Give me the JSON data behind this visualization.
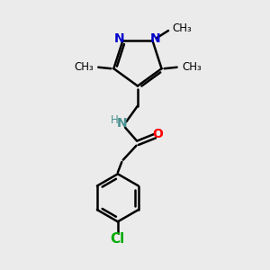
{
  "background_color": "#ebebeb",
  "bond_color": "#000000",
  "n_color": "#0000cc",
  "o_color": "#ff0000",
  "cl_color": "#00aa00",
  "nh_color": "#4a9090",
  "figsize": [
    3.0,
    3.0
  ],
  "dpi": 100,
  "xlim": [
    0,
    10
  ],
  "ylim": [
    0,
    10
  ]
}
